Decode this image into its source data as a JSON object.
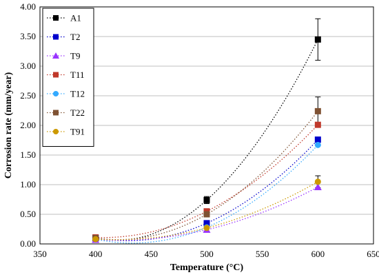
{
  "chart_data": {
    "type": "scatter",
    "xlabel": "Temperature (°C)",
    "ylabel": "Corrosion rate (mm/year)",
    "xlim": [
      350,
      650
    ],
    "ylim": [
      0,
      4
    ],
    "x_ticks": [
      "350",
      "400",
      "450",
      "500",
      "550",
      "600",
      "650"
    ],
    "y_ticks": [
      "0.00",
      "0.50",
      "1.00",
      "1.50",
      "2.00",
      "2.50",
      "3.00",
      "3.50",
      "4.00"
    ],
    "x": [
      400,
      500,
      600
    ],
    "legend_position": "top-left",
    "trendline": "dotted polynomial",
    "series": [
      {
        "name": "A1",
        "color": "#000000",
        "marker": "square",
        "values": [
          0.1,
          0.74,
          3.45
        ],
        "error": [
          0.02,
          0.06,
          0.35
        ]
      },
      {
        "name": "T2",
        "color": "#0000cc",
        "marker": "square",
        "values": [
          0.1,
          0.35,
          1.76
        ],
        "error": [
          0.0,
          0.0,
          0.0
        ]
      },
      {
        "name": "T9",
        "color": "#9933ff",
        "marker": "triangle",
        "values": [
          0.07,
          0.24,
          0.96
        ],
        "error": [
          0.0,
          0.0,
          0.0
        ]
      },
      {
        "name": "T11",
        "color": "#c0392b",
        "marker": "square",
        "values": [
          0.11,
          0.55,
          2.01
        ],
        "error": [
          0.0,
          0.0,
          0.0
        ]
      },
      {
        "name": "T12",
        "color": "#33aaff",
        "marker": "circle",
        "values": [
          0.08,
          0.28,
          1.67
        ],
        "error": [
          0.0,
          0.0,
          0.0
        ]
      },
      {
        "name": "T22",
        "color": "#7f5233",
        "marker": "square",
        "values": [
          0.1,
          0.5,
          2.24
        ],
        "error": [
          0.0,
          0.0,
          0.24
        ]
      },
      {
        "name": "T91",
        "color": "#cc9900",
        "marker": "circle",
        "values": [
          0.08,
          0.27,
          1.05
        ],
        "error": [
          0.0,
          0.0,
          0.1
        ]
      }
    ]
  }
}
